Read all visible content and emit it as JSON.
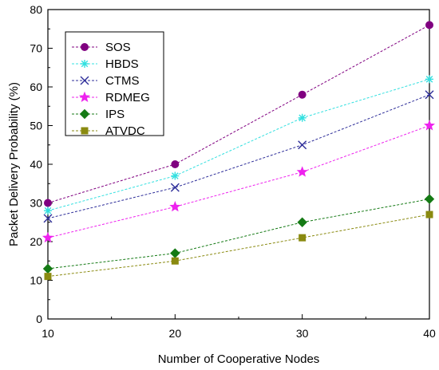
{
  "chart_data": {
    "type": "line",
    "xlabel": "Number of Cooperative Nodes",
    "ylabel": "Packet Delivery Probability (%)",
    "x": [
      10,
      20,
      30,
      40
    ],
    "xlim": [
      10,
      40
    ],
    "ylim": [
      0,
      80
    ],
    "xticks": [
      "10",
      "20",
      "30",
      "40"
    ],
    "yticks": [
      "0",
      "10",
      "20",
      "30",
      "40",
      "50",
      "60",
      "70",
      "80"
    ],
    "legend_position": "top-left",
    "grid": false,
    "series": [
      {
        "name": "SOS",
        "values": [
          30,
          40,
          58,
          76
        ],
        "color": "#800080",
        "marker": "circle"
      },
      {
        "name": "HBDS",
        "values": [
          28,
          37,
          52,
          62
        ],
        "color": "#33e0e0",
        "marker": "asterisk"
      },
      {
        "name": "CTMS",
        "values": [
          26,
          34,
          45,
          58
        ],
        "color": "#2e2e99",
        "marker": "x"
      },
      {
        "name": "RDMEG",
        "values": [
          21,
          29,
          38,
          50
        ],
        "color": "#ee22ee",
        "marker": "star"
      },
      {
        "name": "IPS",
        "values": [
          13,
          17,
          25,
          31
        ],
        "color": "#157a15",
        "marker": "diamond"
      },
      {
        "name": "ATVDC",
        "values": [
          11,
          15,
          21,
          27
        ],
        "color": "#8a8a10",
        "marker": "square"
      }
    ]
  }
}
